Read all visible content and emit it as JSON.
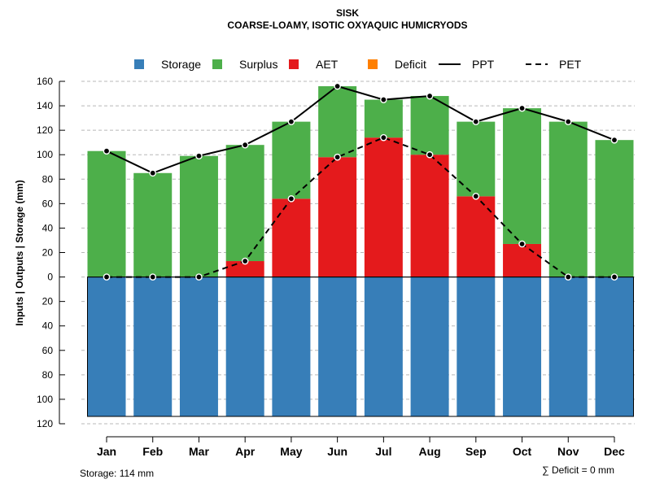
{
  "chart_data": {
    "type": "bar",
    "title": "SISK",
    "subtitle": "COARSE-LOAMY, ISOTIC OXYAQUIC HUMICRYODS",
    "ylabel": "Inputs | Outputs | Storage    (mm)",
    "categories": [
      "Jan",
      "Feb",
      "Mar",
      "Apr",
      "May",
      "Jun",
      "Jul",
      "Aug",
      "Sep",
      "Oct",
      "Nov",
      "Dec"
    ],
    "ylim": [
      -120,
      160
    ],
    "y_ticks": [
      160,
      140,
      120,
      100,
      80,
      60,
      40,
      20,
      0,
      -20,
      -40,
      -60,
      -80,
      -100,
      -120
    ],
    "y_tick_labels": [
      "160",
      "140",
      "120",
      "100",
      "80",
      "60",
      "40",
      "20",
      "0",
      "20",
      "40",
      "60",
      "80",
      "100",
      "120"
    ],
    "grid": true,
    "legend_position": "top",
    "legend": [
      {
        "name": "Storage",
        "kind": "box",
        "color": "#377EB8"
      },
      {
        "name": "Surplus",
        "kind": "box",
        "color": "#4DAF4A"
      },
      {
        "name": "AET",
        "kind": "box",
        "color": "#E41A1C"
      },
      {
        "name": "Deficit",
        "kind": "box",
        "color": "#FF7F00"
      },
      {
        "name": "PPT",
        "kind": "solid"
      },
      {
        "name": "PET",
        "kind": "dashed"
      }
    ],
    "series": [
      {
        "name": "Storage",
        "color": "#377EB8",
        "values": [
          -114,
          -114,
          -114,
          -114,
          -114,
          -114,
          -114,
          -114,
          -114,
          -114,
          -114,
          -114
        ]
      },
      {
        "name": "AET",
        "color": "#E41A1C",
        "values": [
          0,
          0,
          0,
          13,
          64,
          98,
          114,
          100,
          66,
          27,
          0,
          0
        ]
      },
      {
        "name": "Surplus",
        "color": "#4DAF4A",
        "values": [
          103,
          85,
          99,
          95,
          63,
          58,
          31,
          48,
          61,
          111,
          127,
          112
        ]
      },
      {
        "name": "Deficit",
        "color": "#FF7F00",
        "values": [
          0,
          0,
          0,
          0,
          0,
          0,
          0,
          0,
          0,
          0,
          0,
          0
        ]
      },
      {
        "name": "PPT",
        "line": "solid",
        "values": [
          103,
          85,
          99,
          108,
          127,
          156,
          145,
          148,
          127,
          138,
          127,
          112
        ]
      },
      {
        "name": "PET",
        "line": "dashed",
        "values": [
          0,
          0,
          0,
          13,
          64,
          98,
          114,
          100,
          66,
          27,
          0,
          0
        ]
      }
    ],
    "annotations": {
      "storage": "Storage: 114 mm",
      "deficit": "∑ Deficit = 0 mm"
    }
  }
}
